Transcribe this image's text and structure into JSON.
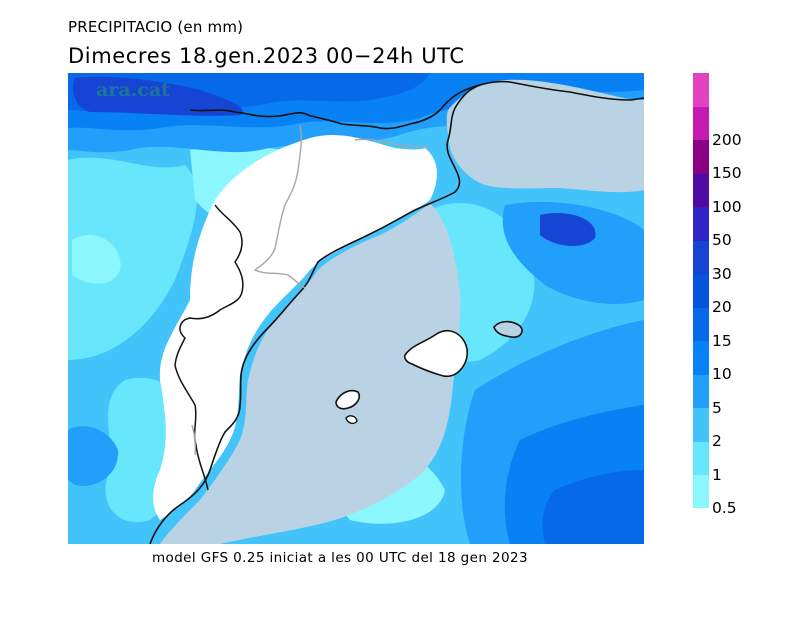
{
  "header": {
    "title": "PRECIPITACIO (en mm)",
    "subtitle": "Dimecres  18.gen.2023 00−24h UTC"
  },
  "watermark": "ara.cat",
  "footer": "model GFS 0.25 iniciat a les 00 UTC del 18 gen 2023",
  "legend": {
    "levels": [
      "0.5",
      "1",
      "2",
      "5",
      "10",
      "15",
      "20",
      "30",
      "50",
      "100",
      "150",
      "200"
    ],
    "colors": [
      "#8bf6fb",
      "#68e6fb",
      "#42c4fb",
      "#229ffb",
      "#0881f4",
      "#0669e8",
      "#0455dc",
      "#1745d3",
      "#3124c4",
      "#4f0ba4",
      "#8c0084",
      "#c51ab1",
      "#e042c0"
    ]
  },
  "map_colors": {
    "sea": "#bad3e4",
    "land": "#ffffff",
    "coast": "#111111",
    "border": "#a6a6a6"
  }
}
